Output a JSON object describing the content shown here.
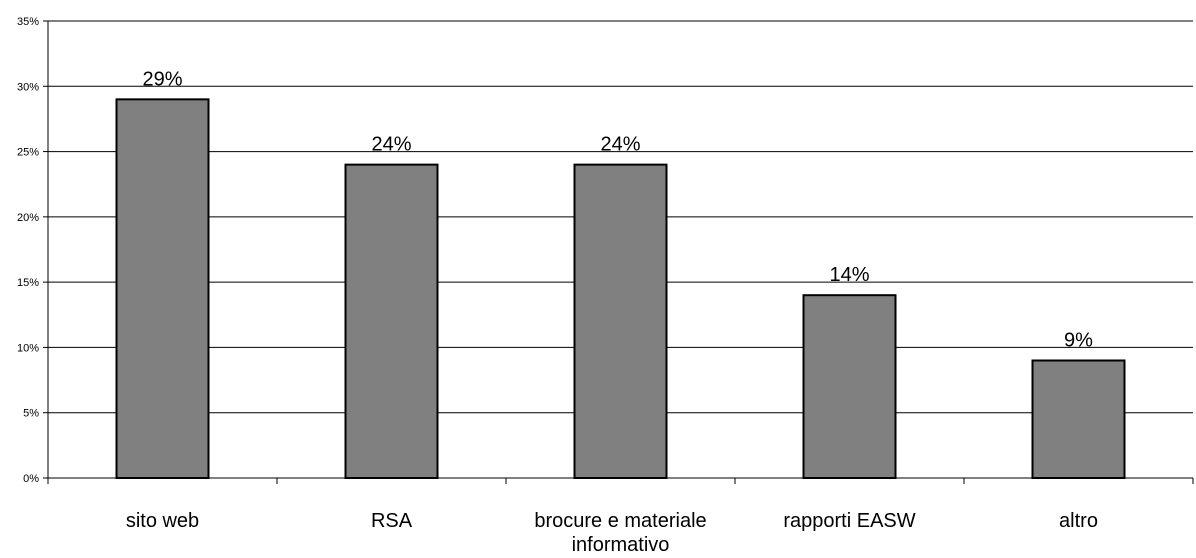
{
  "chart_data": {
    "type": "bar",
    "categories": [
      [
        "sito web"
      ],
      [
        "RSA"
      ],
      [
        "brocure e materiale",
        "informativo"
      ],
      [
        "rapporti EASW"
      ],
      [
        "altro"
      ]
    ],
    "values": [
      29,
      24,
      24,
      14,
      9
    ],
    "data_labels": [
      "29%",
      "24%",
      "24%",
      "14%",
      "9%"
    ],
    "y_ticks": [
      0,
      5,
      10,
      15,
      20,
      25,
      30,
      35
    ],
    "y_tick_labels": [
      "0%",
      "5%",
      "10%",
      "15%",
      "20%",
      "25%",
      "30%",
      "35%"
    ],
    "ylim": [
      0,
      35
    ],
    "grid": true,
    "legend": "none",
    "bar_color": "#808080",
    "bar_outline": "#000000"
  }
}
